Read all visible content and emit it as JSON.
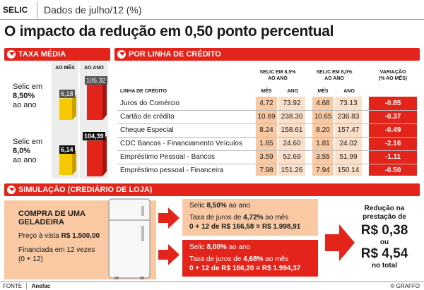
{
  "top_tag": "SELIC",
  "top_subtitle": "Dados de julho/12 (%)",
  "headline": "O impacto da redução em 0,50 ponto percentual",
  "taxa_media": {
    "title": "TAXA MÉDIA",
    "col_mes": "AO MÊS",
    "col_ano": "AO ANO",
    "row1_label": [
      "Selic em",
      "8,50%",
      "ao ano"
    ],
    "row1_mes": "6,18",
    "row1_ano": "105,32",
    "row2_label": [
      "Selic em",
      "8,0%",
      "ao ano"
    ],
    "row2_mes": "6,14",
    "row2_ano": "104,39"
  },
  "credito": {
    "title": "POR LINHA DE CRÉDITO",
    "header_selic1": [
      "SELIC EM 8,5%",
      "AO ANO"
    ],
    "header_selic2": [
      "SELIC EM 8,0%",
      "AO ANO"
    ],
    "header_var": [
      "VARIAÇÃO",
      "(% AO MÊS)"
    ],
    "col_linha": "LINHA DE CRÉDITO",
    "col_mes": "MÊS",
    "col_ano": "ANO",
    "rows": [
      {
        "name": "Juros do Comércio",
        "m1": "4.72",
        "a1": "73.92",
        "m2": "4.68",
        "a2": "73.13",
        "var": "-0.85"
      },
      {
        "name": "Cartão de crédito",
        "m1": "10.69",
        "a1": "238.30",
        "m2": "10.65",
        "a2": "236.83",
        "var": "-0.37"
      },
      {
        "name": "Cheque Especial",
        "m1": "8.24",
        "a1": "158.61",
        "m2": "8.20",
        "a2": "157.47",
        "var": "-0.49"
      },
      {
        "name": "CDC Bancos - Financiamento Veículos",
        "m1": "1.85",
        "a1": "24.60",
        "m2": "1.81",
        "a2": "24.02",
        "var": "-2.16"
      },
      {
        "name": "Empréstimo Pessoal - Bancos",
        "m1": "3.59",
        "a1": "52.69",
        "m2": "3.55",
        "a2": "51.99",
        "var": "-1.11"
      },
      {
        "name": "Empréstimo pessoal - Financeira",
        "m1": "7.98",
        "a1": "151.26",
        "m2": "7.94",
        "a2": "150.14",
        "var": "-0.50"
      }
    ]
  },
  "simulacao": {
    "title": "SIMULAÇÃO (CREDIÁRIO DE LOJA)",
    "compra_title": [
      "COMPRA DE UMA",
      "GELADEIRA"
    ],
    "preco_text": "Preço à vista ",
    "preco_value": "R$ 1.500,00",
    "financiada": [
      "Financiada em 12 vezes",
      "(0 + 12)"
    ],
    "cenario1": {
      "selic_pre": "Selic ",
      "selic_value": "8,50%",
      "selic_post": " ao ano",
      "taxa_pre": "Taxa de juros de ",
      "taxa_value": "4,72%",
      "taxa_post": " ao mês",
      "calc": "0 + 12 de R$ 166,58 = R$ 1.998,91"
    },
    "cenario2": {
      "selic_pre": "Selic ",
      "selic_value": "8,00%",
      "selic_post": " ao ano",
      "taxa_pre": "Taxa de juros de ",
      "taxa_value": "4,68%",
      "taxa_post": " ao mês",
      "calc": "0 + 12 de R$ 166,20 = R$ 1.994,37"
    },
    "reducao_title": [
      "Redução na",
      "prestação de"
    ],
    "reducao_value1": "R$ 0,38",
    "reducao_ou": "ou",
    "reducao_value2": "R$ 4,54",
    "reducao_total": "no total"
  },
  "footer": {
    "fonte_label": "FONTE",
    "fonte_value": "Anefac",
    "credit": "® GRAFFO"
  },
  "colors": {
    "red": "#e3241b",
    "yellow": "#f5c800",
    "salmon": "#f8c9a3",
    "gray_col": "#e6e6e6"
  }
}
